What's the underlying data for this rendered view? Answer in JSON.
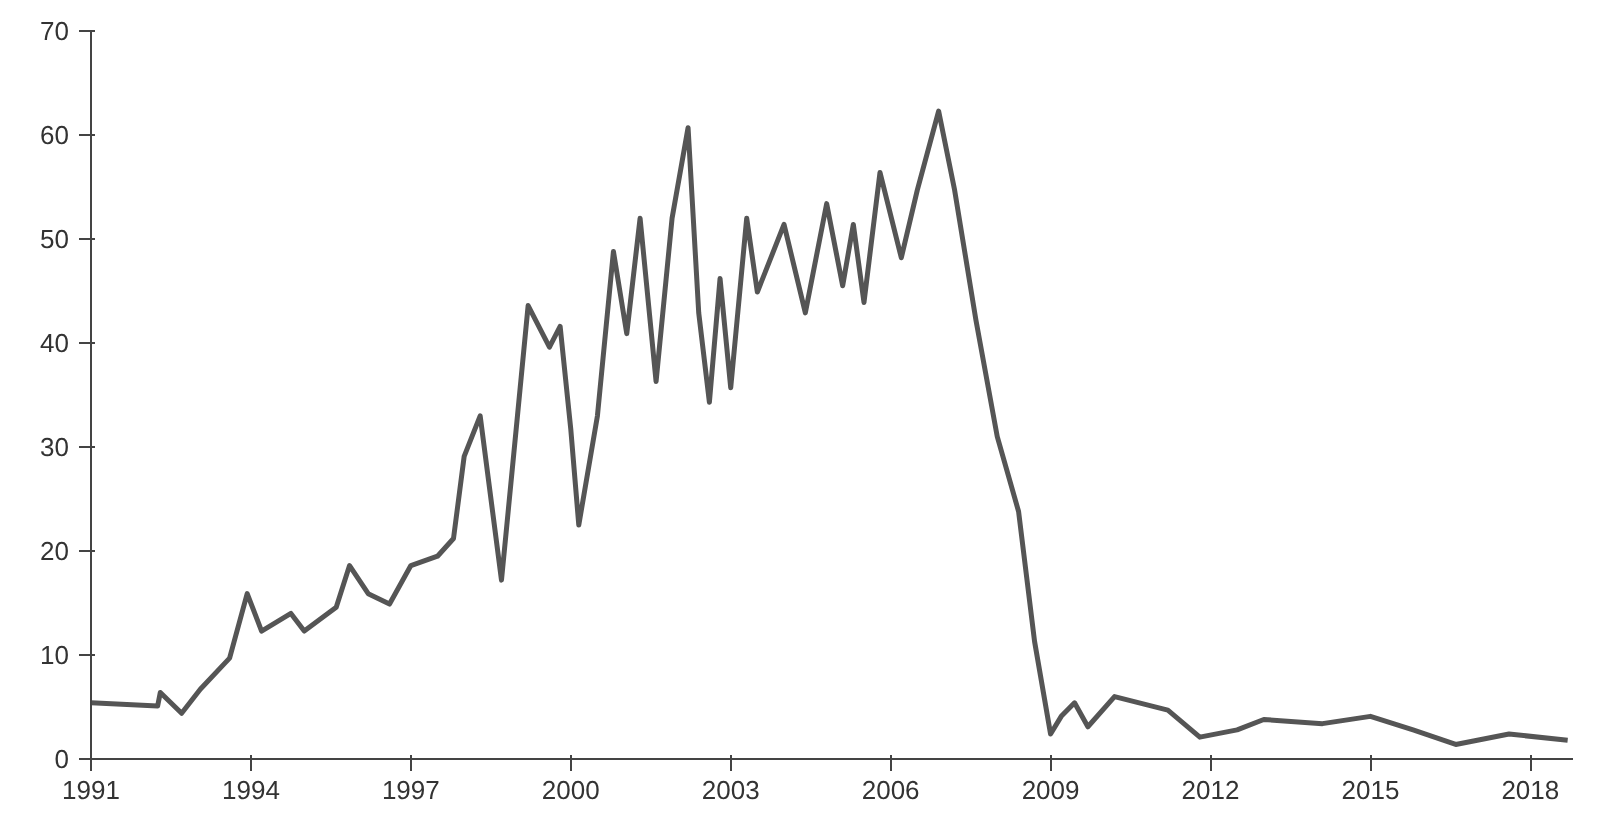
{
  "chart_data": {
    "type": "line",
    "xlim": [
      1991,
      2018.8
    ],
    "xticks": [
      1991,
      1994,
      1997,
      2000,
      2003,
      2006,
      2009,
      2012,
      2015,
      2018
    ],
    "ylim": [
      0,
      70
    ],
    "yticks": [
      0,
      10,
      20,
      30,
      40,
      50,
      60,
      70
    ],
    "grid": false,
    "series": [
      {
        "color": "#555555",
        "x": [
          1991.0,
          1992.25,
          1992.3,
          1992.7,
          1993.05,
          1993.6,
          1993.93,
          1994.2,
          1994.75,
          1995.0,
          1995.6,
          1995.85,
          1996.2,
          1996.6,
          1997.0,
          1997.5,
          1997.8,
          1998.0,
          1998.3,
          1998.7,
          1999.0,
          1999.2,
          1999.6,
          1999.8,
          2000.0,
          2000.15,
          2000.5,
          2000.8,
          2001.05,
          2001.3,
          2001.6,
          2001.9,
          2002.2,
          2002.4,
          2002.6,
          2002.8,
          2003.0,
          2003.3,
          2003.5,
          2004.0,
          2004.4,
          2004.8,
          2005.1,
          2005.3,
          2005.5,
          2005.8,
          2006.2,
          2006.5,
          2006.9,
          2007.2,
          2007.6,
          2008.0,
          2008.4,
          2008.7,
          2009.0,
          2009.2,
          2009.45,
          2009.7,
          2010.2,
          2011.2,
          2011.8,
          2012.5,
          2013.0,
          2014.1,
          2015.0,
          2015.8,
          2016.6,
          2017.6,
          2018.7
        ],
        "values": [
          5.4,
          5.1,
          6.4,
          4.4,
          6.7,
          9.7,
          15.9,
          12.3,
          14,
          12.3,
          14.6,
          18.6,
          15.9,
          14.9,
          18.6,
          19.5,
          21.2,
          29.1,
          33,
          17.2,
          33,
          43.6,
          39.6,
          41.6,
          31.7,
          22.5,
          33,
          48.8,
          40.9,
          52,
          36.3,
          52,
          60.7,
          42.9,
          34.3,
          46.2,
          35.7,
          52,
          44.9,
          51.4,
          42.9,
          53.4,
          45.5,
          51.4,
          43.9,
          56.4,
          48.2,
          54.7,
          62.3,
          54.7,
          42.2,
          31,
          23.8,
          11.3,
          2.4,
          4.1,
          5.4,
          3.1,
          6,
          4.7,
          2.1,
          2.8,
          3.8,
          3.4,
          4.1,
          2.8,
          1.4,
          2.4,
          1.8
        ]
      }
    ]
  }
}
